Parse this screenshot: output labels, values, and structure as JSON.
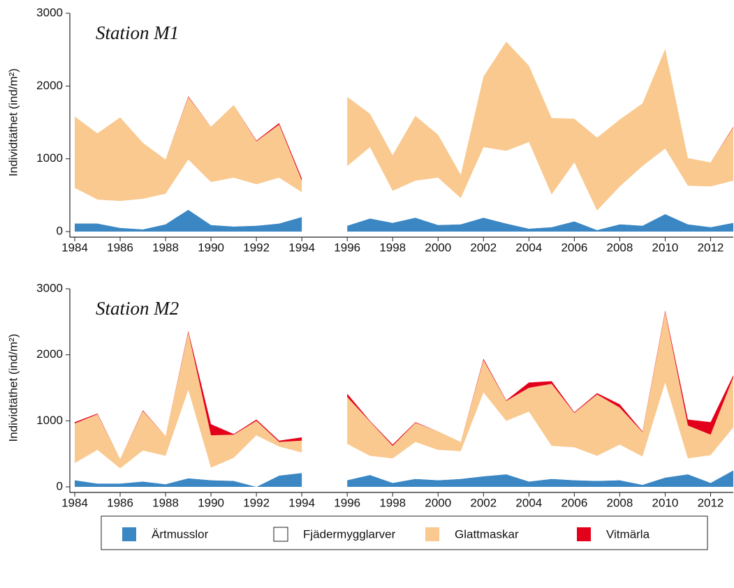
{
  "chart_data": [
    {
      "type": "stacked_area",
      "title": "Station M1",
      "ylabel": "Individtäthet (ind/m²)",
      "x": [
        1984,
        1985,
        1986,
        1987,
        1988,
        1989,
        1990,
        1991,
        1992,
        1993,
        1994,
        1995,
        1996,
        1997,
        1998,
        1999,
        2000,
        2001,
        2002,
        2003,
        2004,
        2005,
        2006,
        2007,
        2008,
        2009,
        2010,
        2011,
        2012,
        2013
      ],
      "xlim": [
        1984,
        2013
      ],
      "xticks": [
        1984,
        1986,
        1988,
        1990,
        1992,
        1994,
        1996,
        1998,
        2000,
        2002,
        2004,
        2006,
        2008,
        2010,
        2012
      ],
      "ylim": [
        0,
        3000
      ],
      "yticks": [
        0,
        1000,
        2000,
        3000
      ],
      "series": [
        {
          "name": "Ärtmusslor",
          "color": "#3b87c4",
          "values": [
            110,
            110,
            50,
            30,
            100,
            300,
            90,
            70,
            80,
            110,
            200,
            null,
            80,
            180,
            120,
            190,
            90,
            100,
            190,
            110,
            40,
            60,
            140,
            20,
            100,
            80,
            240,
            100,
            60,
            120
          ]
        },
        {
          "name": "Fjädermygglarver",
          "color": "#ffffff",
          "values": [
            490,
            330,
            370,
            420,
            420,
            690,
            590,
            670,
            570,
            630,
            340,
            null,
            820,
            980,
            440,
            510,
            650,
            360,
            970,
            1000,
            1190,
            450,
            810,
            270,
            520,
            820,
            900,
            530,
            560,
            580
          ]
        },
        {
          "name": "Glattmaskar",
          "color": "#f9c98f",
          "values": [
            980,
            910,
            1150,
            770,
            470,
            860,
            760,
            1000,
            590,
            730,
            160,
            null,
            950,
            460,
            490,
            890,
            590,
            320,
            970,
            1500,
            1050,
            1050,
            600,
            1000,
            920,
            860,
            1370,
            380,
            330,
            730
          ]
        },
        {
          "name": "Vitmärla",
          "color": "#e3001b",
          "values": [
            0,
            0,
            0,
            0,
            0,
            10,
            0,
            0,
            10,
            20,
            30,
            null,
            0,
            0,
            0,
            0,
            0,
            0,
            0,
            0,
            0,
            0,
            0,
            0,
            0,
            0,
            0,
            0,
            0,
            10
          ]
        }
      ]
    },
    {
      "type": "stacked_area",
      "title": "Station M2",
      "ylabel": "Individtäthet (ind/m²)",
      "x": [
        1984,
        1985,
        1986,
        1987,
        1988,
        1989,
        1990,
        1991,
        1992,
        1993,
        1994,
        1995,
        1996,
        1997,
        1998,
        1999,
        2000,
        2001,
        2002,
        2003,
        2004,
        2005,
        2006,
        2007,
        2008,
        2009,
        2010,
        2011,
        2012,
        2013
      ],
      "xlim": [
        1984,
        2013
      ],
      "xticks": [
        1984,
        1986,
        1988,
        1990,
        1992,
        1994,
        1996,
        1998,
        2000,
        2002,
        2004,
        2006,
        2008,
        2010,
        2012
      ],
      "ylim": [
        0,
        3000
      ],
      "yticks": [
        0,
        1000,
        2000,
        3000
      ],
      "series": [
        {
          "color": "#3b87c4",
          "values": [
            100,
            50,
            50,
            80,
            40,
            130,
            100,
            90,
            0,
            170,
            210,
            null,
            100,
            180,
            60,
            120,
            100,
            120,
            160,
            190,
            80,
            120,
            100,
            90,
            100,
            30,
            140,
            190,
            60,
            250
          ]
        },
        {
          "color": "#ffffff",
          "values": [
            260,
            510,
            230,
            470,
            430,
            1340,
            190,
            350,
            780,
            440,
            310,
            null,
            550,
            290,
            370,
            560,
            460,
            420,
            1270,
            810,
            1060,
            500,
            500,
            380,
            540,
            430,
            1440,
            240,
            420,
            650
          ]
        },
        {
          "color": "#f9c98f",
          "values": [
            600,
            540,
            140,
            600,
            300,
            870,
            490,
            350,
            220,
            70,
            180,
            null,
            710,
            520,
            190,
            290,
            280,
            140,
            490,
            300,
            360,
            940,
            520,
            930,
            560,
            370,
            1070,
            500,
            310,
            760
          ]
        },
        {
          "color": "#e3001b",
          "values": [
            20,
            10,
            0,
            10,
            0,
            20,
            170,
            10,
            20,
            20,
            50,
            null,
            50,
            10,
            20,
            10,
            0,
            0,
            20,
            10,
            80,
            40,
            10,
            20,
            50,
            10,
            20,
            90,
            190,
            30
          ]
        }
      ]
    }
  ]
}
